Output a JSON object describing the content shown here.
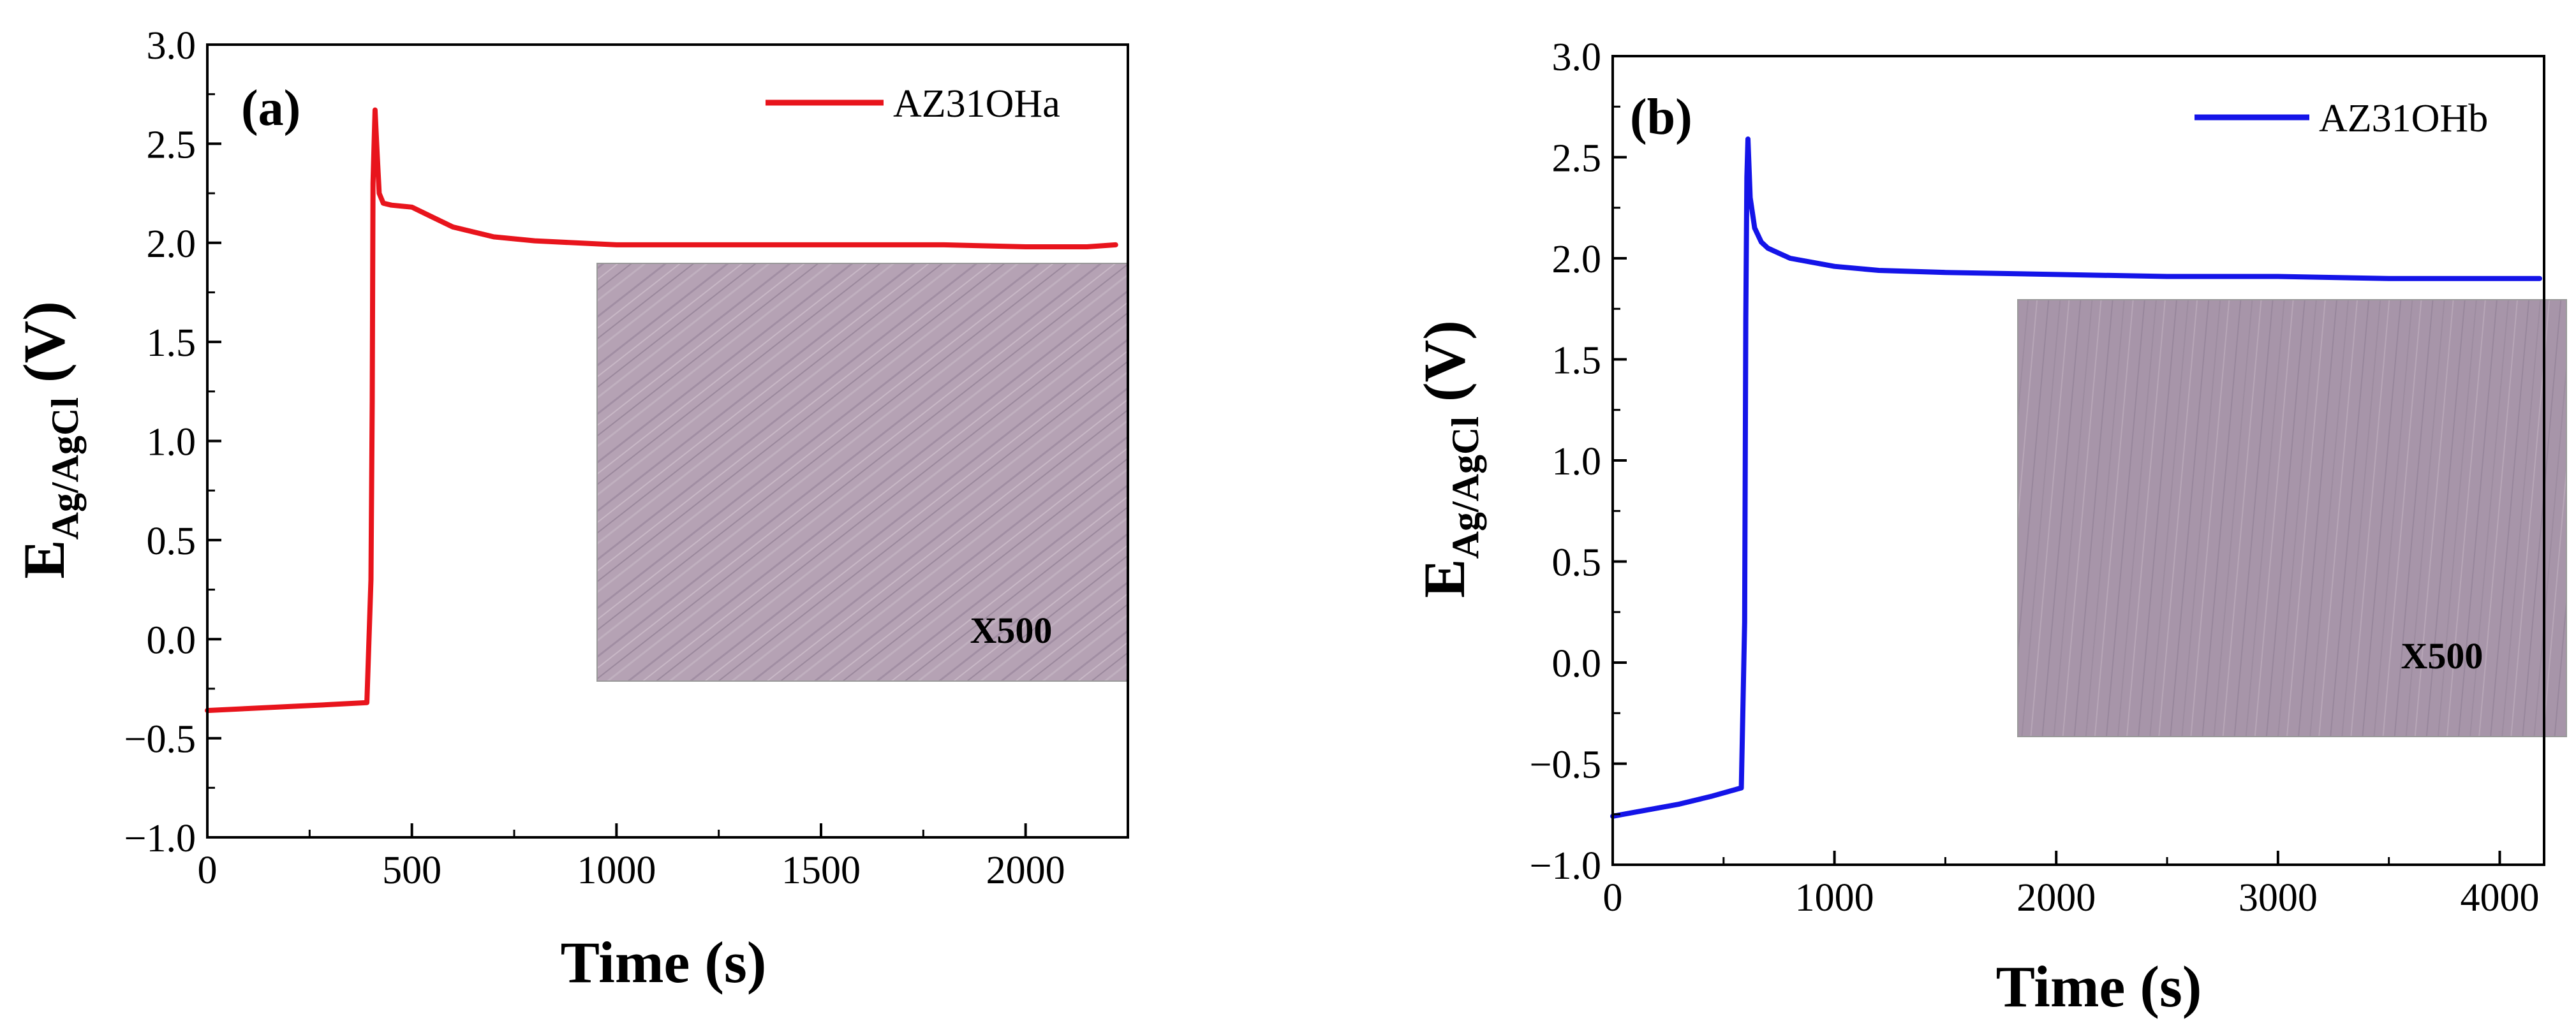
{
  "chart_data": [
    {
      "type": "line",
      "panel_label": "(a)",
      "xlabel": "Time (s)",
      "ylabel_main": "E",
      "ylabel_sub": "Ag/AgCl",
      "ylabel_unit": " (V)",
      "xlim": [
        0,
        2250
      ],
      "ylim": [
        -1.0,
        3.0
      ],
      "x_ticks": [
        0,
        500,
        1000,
        1500,
        2000
      ],
      "x_tick_labels": [
        "0",
        "500",
        "1000",
        "1500",
        "2000"
      ],
      "y_ticks": [
        -1.0,
        -0.5,
        0.0,
        0.5,
        1.0,
        1.5,
        2.0,
        2.5,
        3.0
      ],
      "y_tick_labels": [
        "−1.0",
        "−0.5",
        "0.0",
        "0.5",
        "1.0",
        "1.5",
        "2.0",
        "2.5",
        "3.0"
      ],
      "legend_position": "top-right",
      "inset_label": "X500",
      "series": [
        {
          "name": "AZ31OHa",
          "color": "#e8141c",
          "x": [
            0,
            100,
            200,
            300,
            390,
            400,
            403,
            405,
            410,
            415,
            420,
            430,
            450,
            500,
            550,
            600,
            700,
            800,
            900,
            1000,
            1200,
            1500,
            1800,
            2000,
            2150,
            2220
          ],
          "y": [
            -0.36,
            -0.35,
            -0.34,
            -0.33,
            -0.32,
            0.3,
            1.2,
            2.3,
            2.67,
            2.45,
            2.25,
            2.2,
            2.19,
            2.18,
            2.13,
            2.08,
            2.03,
            2.01,
            2.0,
            1.99,
            1.99,
            1.99,
            1.99,
            1.98,
            1.98,
            1.99
          ]
        }
      ]
    },
    {
      "type": "line",
      "panel_label": "(b)",
      "xlabel": "Time (s)",
      "ylabel_main": "E",
      "ylabel_sub": "Ag/AgCl",
      "ylabel_unit": " (V)",
      "xlim": [
        0,
        4200
      ],
      "ylim": [
        -1.0,
        3.0
      ],
      "x_ticks": [
        0,
        1000,
        2000,
        3000,
        4000
      ],
      "x_tick_labels": [
        "0",
        "1000",
        "2000",
        "3000",
        "4000"
      ],
      "y_ticks": [
        -1.0,
        -0.5,
        0.0,
        0.5,
        1.0,
        1.5,
        2.0,
        2.5,
        3.0
      ],
      "y_tick_labels": [
        "−1.0",
        "−0.5",
        "0.0",
        "0.5",
        "1.0",
        "1.5",
        "2.0",
        "2.5",
        "3.0"
      ],
      "legend_position": "top-right",
      "inset_label": "X500",
      "series": [
        {
          "name": "AZ31OHb",
          "color": "#1414e8",
          "x": [
            0,
            150,
            300,
            450,
            580,
            595,
            600,
            605,
            610,
            620,
            640,
            670,
            700,
            800,
            1000,
            1200,
            1500,
            2000,
            2500,
            3000,
            3500,
            4000,
            4180
          ],
          "y": [
            -0.76,
            -0.73,
            -0.7,
            -0.66,
            -0.62,
            0.2,
            1.7,
            2.4,
            2.59,
            2.3,
            2.15,
            2.08,
            2.05,
            2.0,
            1.96,
            1.94,
            1.93,
            1.92,
            1.91,
            1.91,
            1.9,
            1.9,
            1.9
          ]
        }
      ]
    }
  ]
}
